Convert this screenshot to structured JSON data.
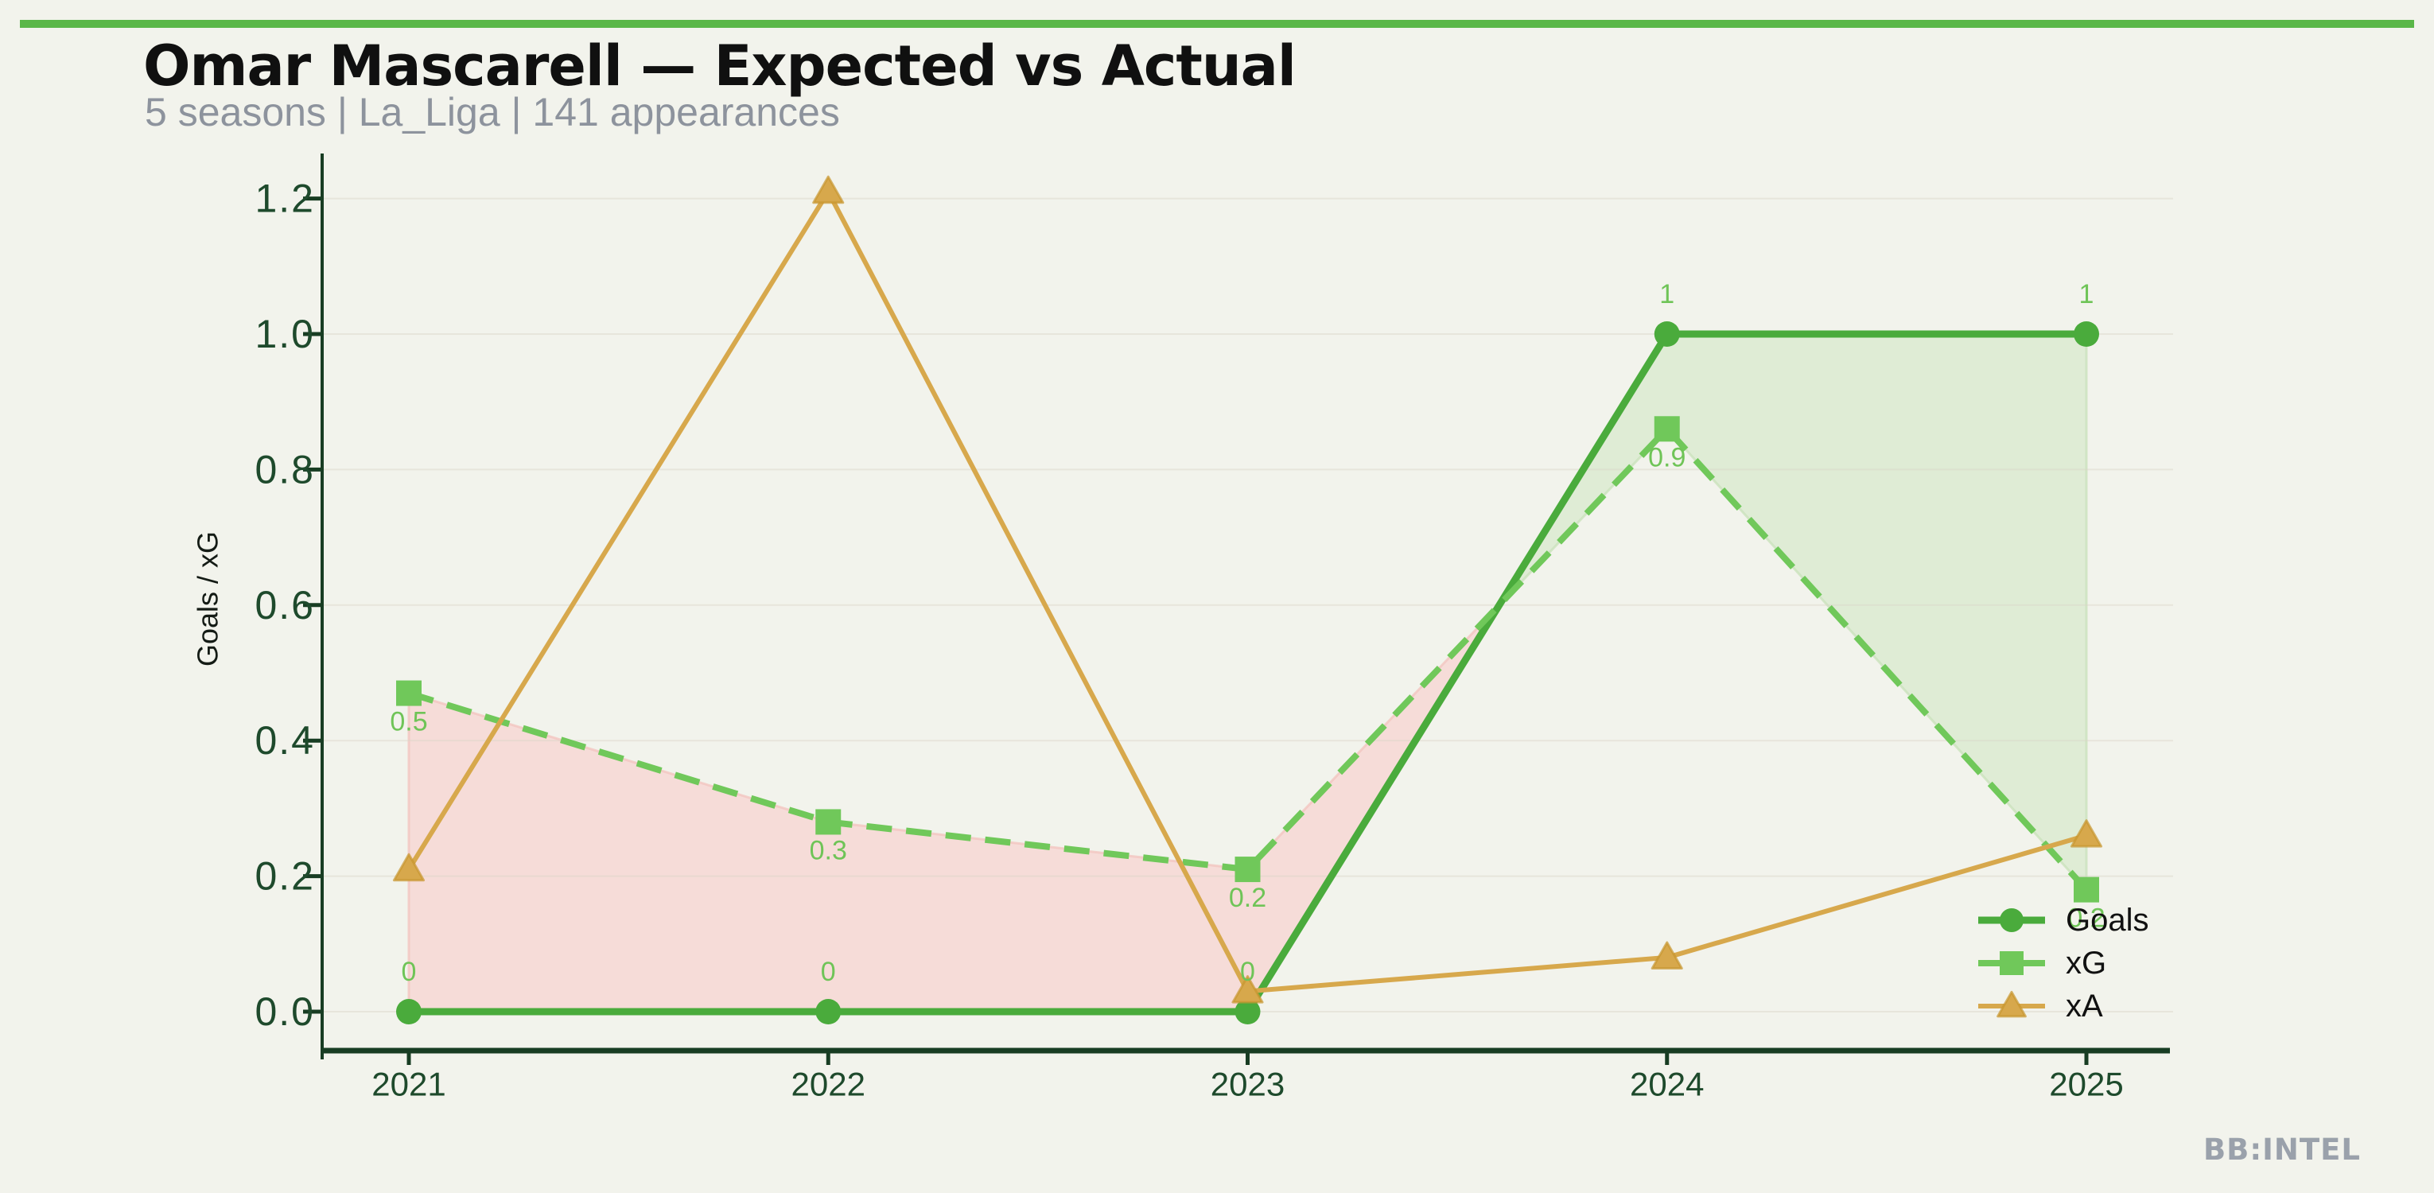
{
  "page": {
    "title": "Omar Mascarell — Expected vs Actual",
    "subtitle": "5 seasons | La_Liga | 141 appearances",
    "watermark": "BB:INTEL",
    "accent_bar_color": "#5ab748",
    "background_color": "#f2f3ec",
    "title_color": "#101010",
    "subtitle_color": "#8d939d",
    "watermark_color": "#9aa1ab"
  },
  "chart_data": {
    "type": "line",
    "title": "Omar Mascarell — Expected vs Actual",
    "x": [
      "2021",
      "2022",
      "2023",
      "2024",
      "2025"
    ],
    "series": [
      {
        "name": "Goals",
        "values": [
          0,
          0,
          0,
          1,
          1
        ],
        "labels": [
          "0",
          "0",
          "0",
          "1",
          "1"
        ],
        "label_position": "above",
        "color": "#4aab3c",
        "marker": "circle",
        "line_style": "solid",
        "line_width": 9
      },
      {
        "name": "xG",
        "values": [
          0.47,
          0.28,
          0.21,
          0.86,
          0.18
        ],
        "labels": [
          "0.5",
          "0.3",
          "0.2",
          "0.9",
          "0.2"
        ],
        "label_position": "below",
        "color": "#70c85a",
        "marker": "square",
        "line_style": "dashed",
        "line_width": 8
      },
      {
        "name": "xA",
        "values": [
          0.21,
          1.21,
          0.03,
          0.08,
          0.26
        ],
        "labels": null,
        "label_position": "none",
        "color": "#d7a84c",
        "marker": "triangle",
        "line_style": "solid",
        "line_width": 6
      }
    ],
    "fills": [
      {
        "name": "xg-over-goals",
        "condition": "xG > Goals",
        "fill_color": "#f6dad6",
        "edge_color": "#f2c6c0"
      },
      {
        "name": "goals-over-xg",
        "condition": "Goals > xG",
        "fill_color": "#ddecd3",
        "edge_color": "#cbe2bd"
      }
    ],
    "ylabel": "Goals / xG",
    "xlabel": "",
    "yticks": [
      0.0,
      0.2,
      0.4,
      0.6,
      0.8,
      1.0,
      1.2
    ],
    "ytick_labels": [
      "0.0",
      "0.2",
      "0.4",
      "0.6",
      "0.8",
      "1.0",
      "1.2"
    ],
    "ylim": [
      0,
      1.25
    ],
    "grid": true,
    "legend": {
      "position": "lower right",
      "entries": [
        "Goals",
        "xG",
        "xA"
      ],
      "text_color": "#111111"
    },
    "data_label_color": "#6fc457",
    "axis_spine_color": "#183d23",
    "tick_label_color": "#1e4a2c",
    "axis_label_color": "#141b15",
    "grid_color": "#d9d4c8"
  }
}
